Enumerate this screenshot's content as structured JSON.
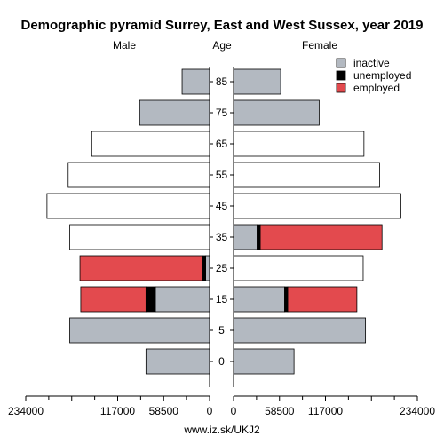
{
  "chart_data": {
    "type": "bar",
    "title": "Demographic pyramid Surrey, East and West Sussex, year 2019",
    "left_label": "Male",
    "center_label": "Age",
    "right_label": "Female",
    "source": "www.iz.sk/UKJ2",
    "age_groups": [
      "0",
      "5",
      "15",
      "25",
      "35",
      "45",
      "55",
      "65",
      "75",
      "85"
    ],
    "legend": [
      {
        "key": "inactive",
        "label": "inactive",
        "color": "#b3b9c1"
      },
      {
        "key": "unemployed",
        "label": "unemployed",
        "color": "#000000"
      },
      {
        "key": "employed",
        "label": "employed",
        "color": "#e34a4e"
      }
    ],
    "x_ticks_left": [
      "234000",
      "117000",
      "58500",
      "0"
    ],
    "x_ticks_right": [
      "0",
      "58500",
      "117000",
      "234000"
    ],
    "xlim": [
      0,
      234000
    ],
    "male": [
      {
        "age": "0",
        "inactive": 81000,
        "unemployed": 0,
        "employed": 0,
        "white": 0
      },
      {
        "age": "5",
        "inactive": 178000,
        "unemployed": 0,
        "employed": 0,
        "white": 0
      },
      {
        "age": "15",
        "inactive": 69000,
        "unemployed": 12000,
        "employed": 83000,
        "white": 0
      },
      {
        "age": "25",
        "inactive": 5000,
        "unemployed": 4000,
        "employed": 156000,
        "white": 0
      },
      {
        "age": "35",
        "inactive": 0,
        "unemployed": 0,
        "employed": 0,
        "white": 178000
      },
      {
        "age": "45",
        "inactive": 0,
        "unemployed": 0,
        "employed": 0,
        "white": 207000
      },
      {
        "age": "55",
        "inactive": 0,
        "unemployed": 0,
        "employed": 0,
        "white": 180000
      },
      {
        "age": "65",
        "inactive": 0,
        "unemployed": 0,
        "employed": 0,
        "white": 150000
      },
      {
        "age": "75",
        "inactive": 89000,
        "unemployed": 0,
        "employed": 0,
        "white": 0
      },
      {
        "age": "85",
        "inactive": 35000,
        "unemployed": 0,
        "employed": 0,
        "white": 0
      }
    ],
    "female": [
      {
        "age": "0",
        "inactive": 77000,
        "unemployed": 0,
        "employed": 0,
        "white": 0
      },
      {
        "age": "5",
        "inactive": 168000,
        "unemployed": 0,
        "employed": 0,
        "white": 0
      },
      {
        "age": "15",
        "inactive": 65000,
        "unemployed": 4000,
        "employed": 88000,
        "white": 0
      },
      {
        "age": "25",
        "inactive": 0,
        "unemployed": 0,
        "employed": 0,
        "white": 165000
      },
      {
        "age": "35",
        "inactive": 30000,
        "unemployed": 4000,
        "employed": 155000,
        "white": 0
      },
      {
        "age": "45",
        "inactive": 0,
        "unemployed": 0,
        "employed": 0,
        "white": 213000
      },
      {
        "age": "55",
        "inactive": 0,
        "unemployed": 0,
        "employed": 0,
        "white": 186000
      },
      {
        "age": "65",
        "inactive": 0,
        "unemployed": 0,
        "employed": 0,
        "white": 166000
      },
      {
        "age": "75",
        "inactive": 109000,
        "unemployed": 0,
        "employed": 0,
        "white": 0
      },
      {
        "age": "85",
        "inactive": 60000,
        "unemployed": 0,
        "employed": 0,
        "white": 0
      }
    ]
  }
}
